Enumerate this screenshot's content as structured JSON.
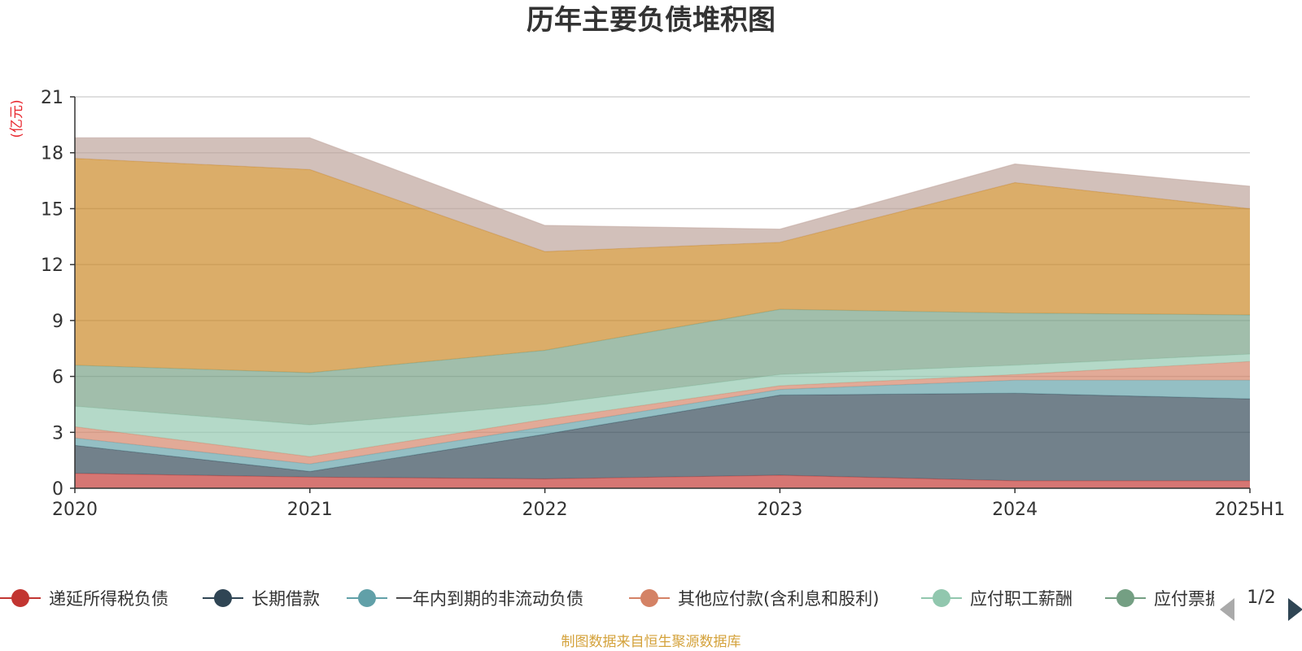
{
  "chart_data": {
    "type": "area",
    "stacked": true,
    "title": "历年主要负债堆积图",
    "unit_label": "(亿元)",
    "x": [
      "2020",
      "2021",
      "2022",
      "2023",
      "2024",
      "2025H1"
    ],
    "yticks": [
      "0",
      "3",
      "6",
      "9",
      "12",
      "15",
      "18",
      "21"
    ],
    "ylim": [
      0,
      21
    ],
    "grid": true,
    "series": [
      {
        "name": "递延所得税负债",
        "color": "#c23531",
        "values": [
          0.8,
          0.6,
          0.5,
          0.7,
          0.4,
          0.4
        ]
      },
      {
        "name": "长期借款",
        "color": "#2f4554",
        "values": [
          1.5,
          0.3,
          2.4,
          4.3,
          4.7,
          4.4
        ]
      },
      {
        "name": "一年内到期的非流动负债",
        "color": "#61a0a8",
        "values": [
          0.4,
          0.4,
          0.4,
          0.3,
          0.7,
          1.0
        ]
      },
      {
        "name": "其他应付款(含利息和股利)",
        "color": "#d48265",
        "values": [
          0.6,
          0.4,
          0.4,
          0.2,
          0.3,
          1.0
        ]
      },
      {
        "name": "应付职工薪酬",
        "color": "#91c7ae",
        "values": [
          1.1,
          1.7,
          0.8,
          0.6,
          0.5,
          0.4
        ]
      },
      {
        "name": "应付票据",
        "color": "#749f83",
        "values": [
          2.2,
          2.8,
          2.9,
          3.5,
          2.8,
          2.1
        ]
      },
      {
        "name": "",
        "color": "#ca8622",
        "values": [
          11.1,
          10.9,
          5.3,
          3.6,
          7.0,
          5.7
        ]
      },
      {
        "name": "",
        "color": "#bda29a",
        "values": [
          1.1,
          1.7,
          1.4,
          0.7,
          1.0,
          1.2
        ]
      }
    ],
    "legend_position": "bottom",
    "legend_visible_entries": [
      "递延所得税负债",
      "长期借款",
      "一年内到期的非流动负债",
      "其他应付款(含利息和股利)",
      "应付职工薪酬",
      "应付票据"
    ],
    "legend_page": "1/2",
    "source": "制图数据来自恒生聚源数据库"
  }
}
